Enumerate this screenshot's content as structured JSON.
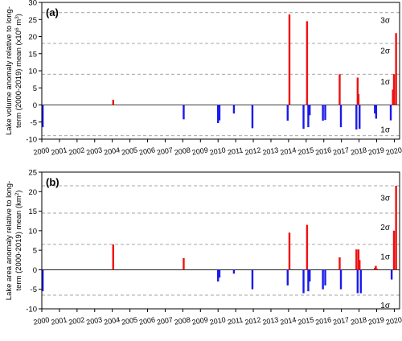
{
  "chart_data": [
    {
      "type": "bar",
      "panel_label": "(a)",
      "ylabel_lines": [
        "Lake volume anomaly relative to long-",
        "term (2000-2019) mean (x10",
        "6",
        " m",
        "3",
        ")"
      ],
      "xlim": [
        2000,
        2020.3
      ],
      "ylim": [
        -10,
        30
      ],
      "yticks": [
        -10,
        -5,
        0,
        5,
        10,
        15,
        20,
        25,
        30
      ],
      "xticks": [
        "2000",
        "2001",
        "2002",
        "2003",
        "2004",
        "2005",
        "2006",
        "2007",
        "2008",
        "2009",
        "2010",
        "2011",
        "2012",
        "2013",
        "2014",
        "2015",
        "2016",
        "2017",
        "2018",
        "2019",
        "2020"
      ],
      "sigma_lines": [
        {
          "label": "",
          "value": -9
        },
        {
          "label": "1σ",
          "value": 9
        },
        {
          "label": "2σ",
          "value": 18
        },
        {
          "label": "3σ",
          "value": 27
        }
      ],
      "sigma_labels": [
        {
          "label": "1σ",
          "y": -7
        },
        {
          "label": "1σ",
          "y": 7
        },
        {
          "label": "2σ",
          "y": 16
        },
        {
          "label": "3σ",
          "y": 25
        }
      ],
      "zero_line": true,
      "colors": {
        "positive": "#ee1111",
        "negative": "#1a1aee"
      },
      "bars": [
        {
          "x": 2000.05,
          "value": -6.5
        },
        {
          "x": 2004.05,
          "value": 1.5
        },
        {
          "x": 2008.05,
          "value": -4.2
        },
        {
          "x": 2010.0,
          "value": -5.3
        },
        {
          "x": 2010.08,
          "value": -4.5
        },
        {
          "x": 2010.9,
          "value": -2.5
        },
        {
          "x": 2011.95,
          "value": -6.8
        },
        {
          "x": 2013.95,
          "value": -4.6
        },
        {
          "x": 2014.05,
          "value": 26.5
        },
        {
          "x": 2014.85,
          "value": -7.0
        },
        {
          "x": 2015.05,
          "value": 24.5
        },
        {
          "x": 2015.12,
          "value": -6.5
        },
        {
          "x": 2015.2,
          "value": -3.0
        },
        {
          "x": 2015.95,
          "value": -4.6
        },
        {
          "x": 2016.08,
          "value": -4.4
        },
        {
          "x": 2016.9,
          "value": 9.0
        },
        {
          "x": 2016.97,
          "value": -6.5
        },
        {
          "x": 2017.85,
          "value": -7.2
        },
        {
          "x": 2017.92,
          "value": 8.0
        },
        {
          "x": 2017.97,
          "value": 3.2
        },
        {
          "x": 2018.03,
          "value": -7.0
        },
        {
          "x": 2018.9,
          "value": -2.5
        },
        {
          "x": 2018.97,
          "value": -4.0
        },
        {
          "x": 2019.8,
          "value": -4.5
        },
        {
          "x": 2019.92,
          "value": 4.5
        },
        {
          "x": 2019.98,
          "value": 9.0
        },
        {
          "x": 2020.1,
          "value": 21.0
        }
      ]
    },
    {
      "type": "bar",
      "panel_label": "(b)",
      "ylabel_lines": [
        "Lake area anomaly relative to long-",
        "term (2000-2019) mean (km",
        "2",
        ")"
      ],
      "xlim": [
        2000,
        2020.3
      ],
      "ylim": [
        -10,
        25
      ],
      "yticks": [
        -10,
        -5,
        0,
        5,
        10,
        15,
        20,
        25
      ],
      "xticks": [
        "2000",
        "2001",
        "2002",
        "2003",
        "2004",
        "2005",
        "2006",
        "2007",
        "2008",
        "2009",
        "2010",
        "2011",
        "2012",
        "2013",
        "2014",
        "2015",
        "2016",
        "2017",
        "2018",
        "2019",
        "2020"
      ],
      "sigma_lines": [
        {
          "label": "",
          "value": -6.5
        },
        {
          "label": "1σ",
          "value": 6.5
        },
        {
          "label": "2σ",
          "value": 14.5
        },
        {
          "label": "3σ",
          "value": 21.5
        }
      ],
      "sigma_labels": [
        {
          "label": "1σ",
          "y": -9
        },
        {
          "label": "1σ",
          "y": 3.5
        },
        {
          "label": "2σ",
          "y": 11
        },
        {
          "label": "3σ",
          "y": 18.5
        }
      ],
      "zero_line": true,
      "colors": {
        "positive": "#ee1111",
        "negative": "#1a1aee"
      },
      "bars": [
        {
          "x": 2000.05,
          "value": -5.5
        },
        {
          "x": 2004.05,
          "value": 6.5
        },
        {
          "x": 2008.05,
          "value": 3.0
        },
        {
          "x": 2010.0,
          "value": -3.0
        },
        {
          "x": 2010.08,
          "value": -2.0
        },
        {
          "x": 2010.9,
          "value": -1.0
        },
        {
          "x": 2011.95,
          "value": -5.0
        },
        {
          "x": 2013.95,
          "value": -4.0
        },
        {
          "x": 2014.05,
          "value": 9.5
        },
        {
          "x": 2014.85,
          "value": -6.0
        },
        {
          "x": 2015.05,
          "value": 11.5
        },
        {
          "x": 2015.12,
          "value": -5.5
        },
        {
          "x": 2015.2,
          "value": -3.0
        },
        {
          "x": 2015.95,
          "value": -5.0
        },
        {
          "x": 2016.08,
          "value": -4.0
        },
        {
          "x": 2016.9,
          "value": 3.2
        },
        {
          "x": 2016.97,
          "value": -5.0
        },
        {
          "x": 2017.85,
          "value": 5.2
        },
        {
          "x": 2017.92,
          "value": -6.0
        },
        {
          "x": 2017.97,
          "value": 5.2
        },
        {
          "x": 2018.03,
          "value": 2.5
        },
        {
          "x": 2018.1,
          "value": -6.0
        },
        {
          "x": 2018.9,
          "value": 0.5
        },
        {
          "x": 2018.95,
          "value": 1.0
        },
        {
          "x": 2019.0,
          "value": 0.3
        },
        {
          "x": 2019.85,
          "value": -2.5
        },
        {
          "x": 2019.98,
          "value": 10.0
        },
        {
          "x": 2020.1,
          "value": 21.5
        }
      ]
    }
  ]
}
